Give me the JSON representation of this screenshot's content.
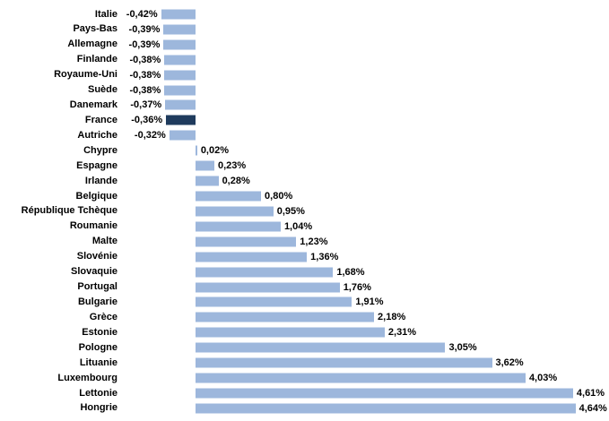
{
  "chart_data": {
    "type": "bar",
    "orientation": "horizontal",
    "title": "",
    "xlabel": "",
    "ylabel": "",
    "value_unit": "%",
    "xlim": [
      -0.5,
      5.0
    ],
    "grid": false,
    "legend": false,
    "highlighted_category": "France",
    "colors": {
      "bar": "#9DB7DC",
      "highlight": "#1F3B5D",
      "text": "#000000",
      "background": "#FFFFFF"
    },
    "categories": [
      "Italie",
      "Pays-Bas",
      "Allemagne",
      "Finlande",
      "Royaume-Uni",
      "Suède",
      "Danemark",
      "France",
      "Autriche",
      "Chypre",
      "Espagne",
      "Irlande",
      "Belgique",
      "République Tchèque",
      "Roumanie",
      "Malte",
      "Slovénie",
      "Slovaquie",
      "Portugal",
      "Bulgarie",
      "Grèce",
      "Estonie",
      "Pologne",
      "Lituanie",
      "Luxembourg",
      "Lettonie",
      "Hongrie"
    ],
    "values": [
      -0.42,
      -0.39,
      -0.39,
      -0.38,
      -0.38,
      -0.38,
      -0.37,
      -0.36,
      -0.32,
      0.02,
      0.23,
      0.28,
      0.8,
      0.95,
      1.04,
      1.23,
      1.36,
      1.68,
      1.76,
      1.91,
      2.18,
      2.31,
      3.05,
      3.62,
      4.03,
      4.61,
      4.64
    ],
    "data_labels": [
      "-0,42%",
      "-0,39%",
      "-0,39%",
      "-0,38%",
      "-0,38%",
      "-0,38%",
      "-0,37%",
      "-0,36%",
      "-0,32%",
      "0,02%",
      "0,23%",
      "0,28%",
      "0,80%",
      "0,95%",
      "1,04%",
      "1,23%",
      "1,36%",
      "1,68%",
      "1,76%",
      "1,91%",
      "2,18%",
      "2,31%",
      "3,05%",
      "3,62%",
      "4,03%",
      "4,61%",
      "4,64%"
    ],
    "highlight_flags": [
      false,
      false,
      false,
      false,
      false,
      false,
      false,
      true,
      false,
      false,
      false,
      false,
      false,
      false,
      false,
      false,
      false,
      false,
      false,
      false,
      false,
      false,
      false,
      false,
      false,
      false,
      false
    ]
  }
}
